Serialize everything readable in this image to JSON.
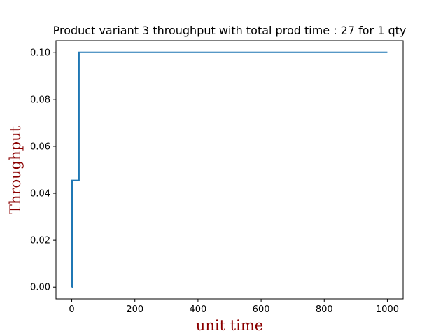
{
  "chart_data": {
    "type": "line",
    "title": "Product variant 3 throughput with total prod time : 27 for 1 qty",
    "xlabel": "unit time",
    "ylabel": "Throughput",
    "xlim": [
      -50,
      1050
    ],
    "ylim": [
      -0.005,
      0.105
    ],
    "x_ticks": [
      0,
      200,
      400,
      600,
      800,
      1000
    ],
    "x_tick_labels": [
      "0",
      "200",
      "400",
      "600",
      "800",
      "1000"
    ],
    "y_ticks": [
      0.0,
      0.02,
      0.04,
      0.06,
      0.08,
      0.1
    ],
    "y_tick_labels": [
      "0.00",
      "0.02",
      "0.04",
      "0.06",
      "0.08",
      "0.10"
    ],
    "grid": false,
    "legend": "none",
    "series": [
      {
        "color": "#1f77b4",
        "step": true,
        "x": [
          0,
          1,
          22,
          23,
          1000
        ],
        "y": [
          0.0,
          0.0455,
          0.0455,
          0.1,
          0.1
        ]
      }
    ]
  }
}
